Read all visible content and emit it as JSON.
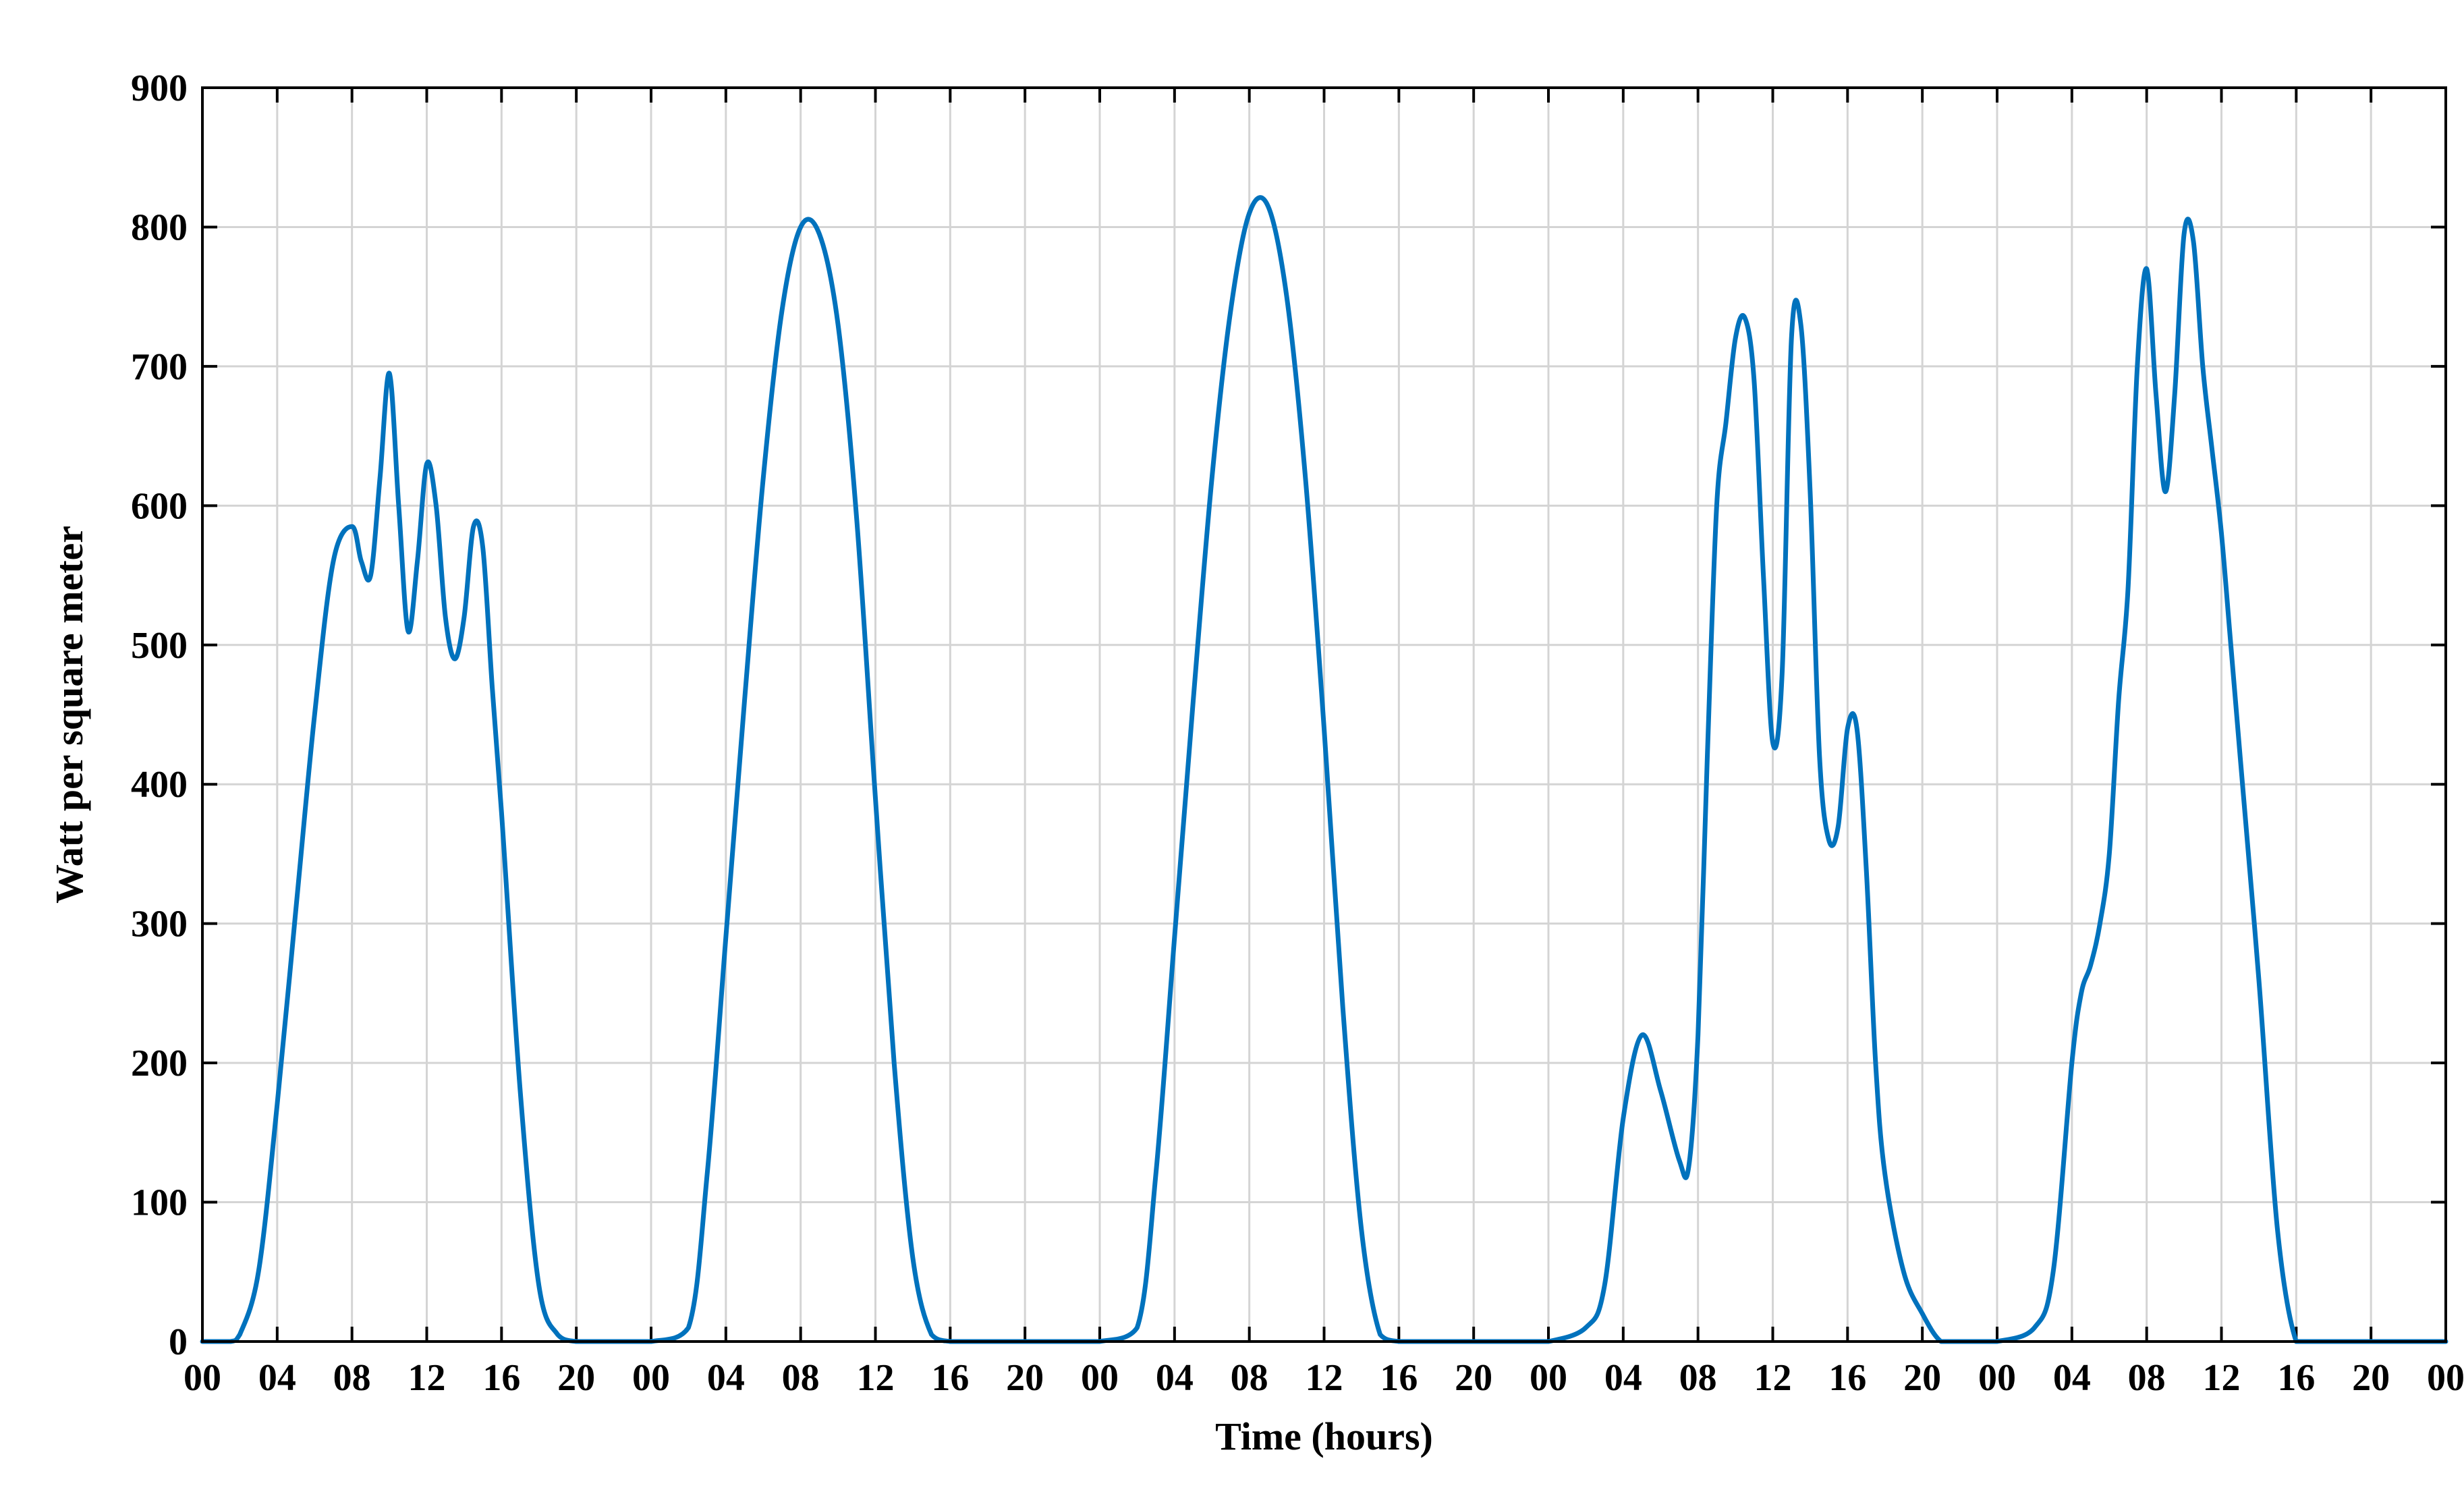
{
  "chart_data": {
    "type": "line",
    "title": "",
    "xlabel": "Time (hours)",
    "ylabel": "Watt per square meter",
    "ylim": [
      0,
      900
    ],
    "xlim": [
      0,
      120
    ],
    "grid": true,
    "y_ticks": [
      "0",
      "100",
      "200",
      "300",
      "400",
      "500",
      "600",
      "700",
      "800",
      "900"
    ],
    "x_ticks": [
      "00",
      "04",
      "08",
      "12",
      "16",
      "20",
      "00",
      "04",
      "08",
      "12",
      "16",
      "20",
      "00",
      "04",
      "08",
      "12",
      "16",
      "20",
      "00",
      "04",
      "08",
      "12",
      "16",
      "20",
      "00",
      "04",
      "08",
      "12",
      "16",
      "20",
      "00"
    ],
    "series": [
      {
        "color": "#0072BD",
        "x": [
          0,
          1.5,
          2,
          3,
          4,
          5,
          6,
          7,
          8,
          8.5,
          9,
          9.5,
          10,
          10.5,
          11,
          11.5,
          12,
          12.5,
          13,
          13.5,
          14,
          14.5,
          15,
          15.5,
          16,
          17,
          18,
          19,
          20,
          21,
          22,
          24,
          26,
          27,
          28,
          29,
          30,
          31,
          32,
          33,
          34,
          35,
          36,
          37,
          38,
          39,
          40,
          41,
          42,
          43,
          44,
          45,
          46,
          47,
          48,
          50,
          51,
          52,
          53,
          54,
          55,
          56,
          57,
          58,
          59,
          60,
          61,
          62,
          63,
          64,
          65,
          66,
          67,
          68,
          69,
          70,
          71,
          72,
          74,
          75,
          76,
          77,
          78,
          79,
          79.5,
          80,
          80.5,
          81,
          81.5,
          82,
          82.5,
          83,
          83.5,
          84,
          84.5,
          85,
          85.5,
          86,
          86.5,
          87,
          87.5,
          88,
          88.5,
          89,
          89.5,
          90,
          91,
          92,
          93,
          94,
          95,
          96,
          98,
          99,
          100,
          100.5,
          101,
          101.5,
          102,
          102.5,
          103,
          103.5,
          104,
          104.5,
          105,
          105.5,
          106,
          106.5,
          107,
          107.5,
          108,
          108.5,
          109,
          110,
          111,
          112,
          113,
          114,
          115,
          116,
          117,
          118,
          120
        ],
        "y": [
          0,
          0,
          5,
          50,
          170,
          310,
          450,
          560,
          585,
          560,
          550,
          620,
          695,
          600,
          510,
          560,
          630,
          600,
          520,
          490,
          520,
          585,
          570,
          470,
          380,
          180,
          40,
          5,
          0,
          0,
          0,
          0,
          10,
          120,
          290,
          460,
          620,
          740,
          800,
          795,
          730,
          590,
          390,
          200,
          60,
          5,
          0,
          0,
          0,
          0,
          0,
          0,
          0,
          0,
          0,
          10,
          120,
          290,
          460,
          620,
          740,
          810,
          815,
          750,
          620,
          440,
          240,
          80,
          5,
          0,
          0,
          0,
          0,
          0,
          0,
          0,
          0,
          0,
          10,
          40,
          160,
          220,
          180,
          130,
          125,
          220,
          420,
          600,
          660,
          720,
          735,
          690,
          550,
          430,
          480,
          720,
          730,
          610,
          420,
          360,
          370,
          440,
          440,
          340,
          200,
          120,
          50,
          20,
          0,
          0,
          0,
          0,
          10,
          50,
          200,
          250,
          270,
          300,
          350,
          460,
          540,
          700,
          770,
          680,
          610,
          680,
          795,
          790,
          700,
          640,
          580,
          500,
          420,
          260,
          80,
          0,
          0,
          0,
          0,
          0,
          0,
          0,
          0
        ]
      }
    ]
  }
}
